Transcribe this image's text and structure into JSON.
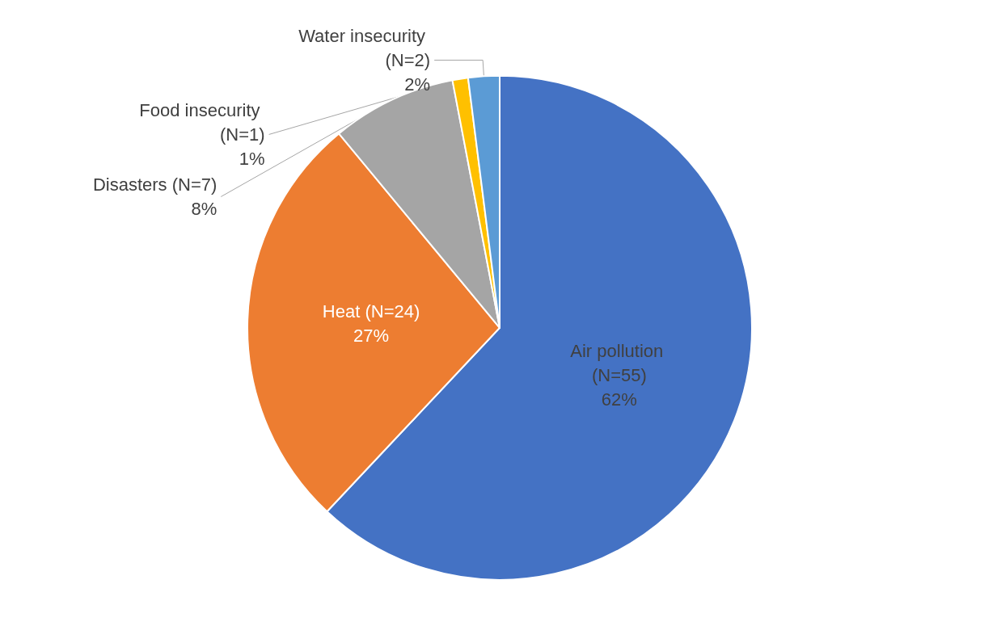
{
  "chart_data": {
    "type": "pie",
    "categories": [
      "Air pollution (N=55)",
      "Heat (N=24)",
      "Disasters (N=7)",
      "Food insecurity (N=1)",
      "Water insecurity (N=2)"
    ],
    "values": [
      62,
      27,
      8,
      1,
      2
    ],
    "value_labels": [
      "62%",
      "27%",
      "8%",
      "1%",
      "2%"
    ],
    "colors": [
      "#4472c4",
      "#ed7d31",
      "#a5a5a5",
      "#ffc000",
      "#5b9bd5"
    ],
    "legend": false
  }
}
